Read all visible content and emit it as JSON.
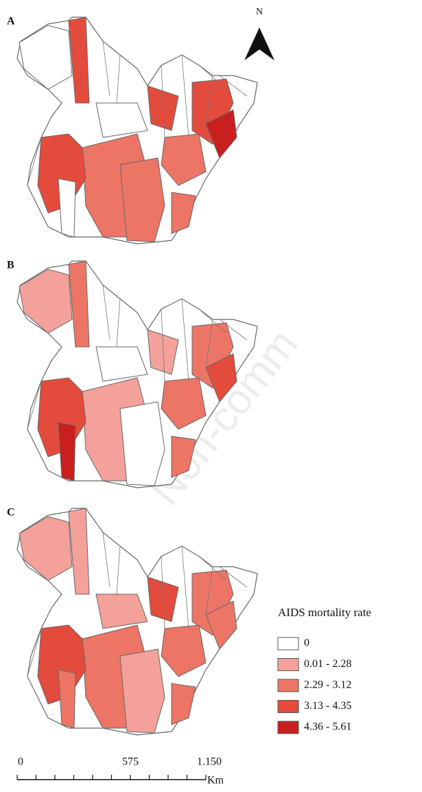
{
  "panels": [
    {
      "label": "A"
    },
    {
      "label": "B"
    },
    {
      "label": "C"
    }
  ],
  "north": "N",
  "legend": {
    "title": "AIDS mortality rate",
    "items": [
      {
        "label": "0",
        "color": "#ffffff"
      },
      {
        "label": "0.01 - 2.28",
        "color": "#f3a19a"
      },
      {
        "label": "2.29 - 3.12",
        "color": "#ec7565"
      },
      {
        "label": "3.13 - 4.35",
        "color": "#e34b3d"
      },
      {
        "label": "4.36 - 5.61",
        "color": "#c91f1f"
      }
    ]
  },
  "scale_bar": {
    "labels": [
      "0",
      "575",
      "1.150"
    ],
    "unit": "Km"
  },
  "watermark": "Non-comm"
}
